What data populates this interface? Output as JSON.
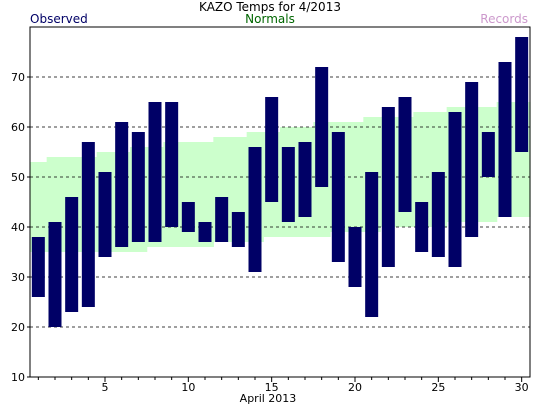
{
  "chart_data": {
    "type": "bar",
    "title": "KAZO Temps for  4/2013",
    "xlabel": "April 2013",
    "ylabel": "",
    "ylim": [
      10,
      80
    ],
    "xlim": [
      0.5,
      30.5
    ],
    "yticks": [
      10,
      20,
      30,
      40,
      50,
      60,
      70
    ],
    "xticks": [
      5,
      10,
      15,
      20,
      25,
      30
    ],
    "grid": "horizontal-dashed",
    "legend": {
      "placement": "top",
      "entries": [
        "Observed",
        "Normals",
        "Records"
      ]
    },
    "colors": {
      "observed": "#000066",
      "normals": "#ccffcc",
      "normals_label": "#006600",
      "records_label": "#cc99cc",
      "grid": "#000000"
    },
    "days": [
      1,
      2,
      3,
      4,
      5,
      6,
      7,
      8,
      9,
      10,
      11,
      12,
      13,
      14,
      15,
      16,
      17,
      18,
      19,
      20,
      21,
      22,
      23,
      24,
      25,
      26,
      27,
      28,
      29,
      30
    ],
    "series": [
      {
        "name": "Observed",
        "low": [
          26,
          20,
          23,
          24,
          34,
          36,
          37,
          37,
          40,
          39,
          37,
          37,
          36,
          31,
          45,
          41,
          42,
          48,
          33,
          28,
          22,
          32,
          43,
          35,
          34,
          32,
          38,
          50,
          42,
          55
        ],
        "high": [
          38,
          41,
          46,
          57,
          51,
          61,
          59,
          65,
          65,
          45,
          41,
          46,
          43,
          56,
          66,
          56,
          57,
          72,
          59,
          40,
          51,
          64,
          66,
          45,
          51,
          63,
          69,
          59,
          73,
          78
        ]
      },
      {
        "name": "Normals",
        "low": [
          35,
          35,
          35,
          35,
          35,
          35,
          35,
          36,
          36,
          36,
          36,
          37,
          37,
          37,
          38,
          38,
          38,
          38,
          39,
          39,
          39,
          40,
          40,
          40,
          40,
          41,
          41,
          41,
          42,
          42
        ],
        "high": [
          53,
          54,
          54,
          54,
          55,
          55,
          56,
          56,
          57,
          57,
          57,
          58,
          58,
          59,
          59,
          60,
          60,
          61,
          61,
          61,
          62,
          62,
          62,
          63,
          63,
          64,
          64,
          64,
          65,
          65
        ]
      }
    ]
  }
}
